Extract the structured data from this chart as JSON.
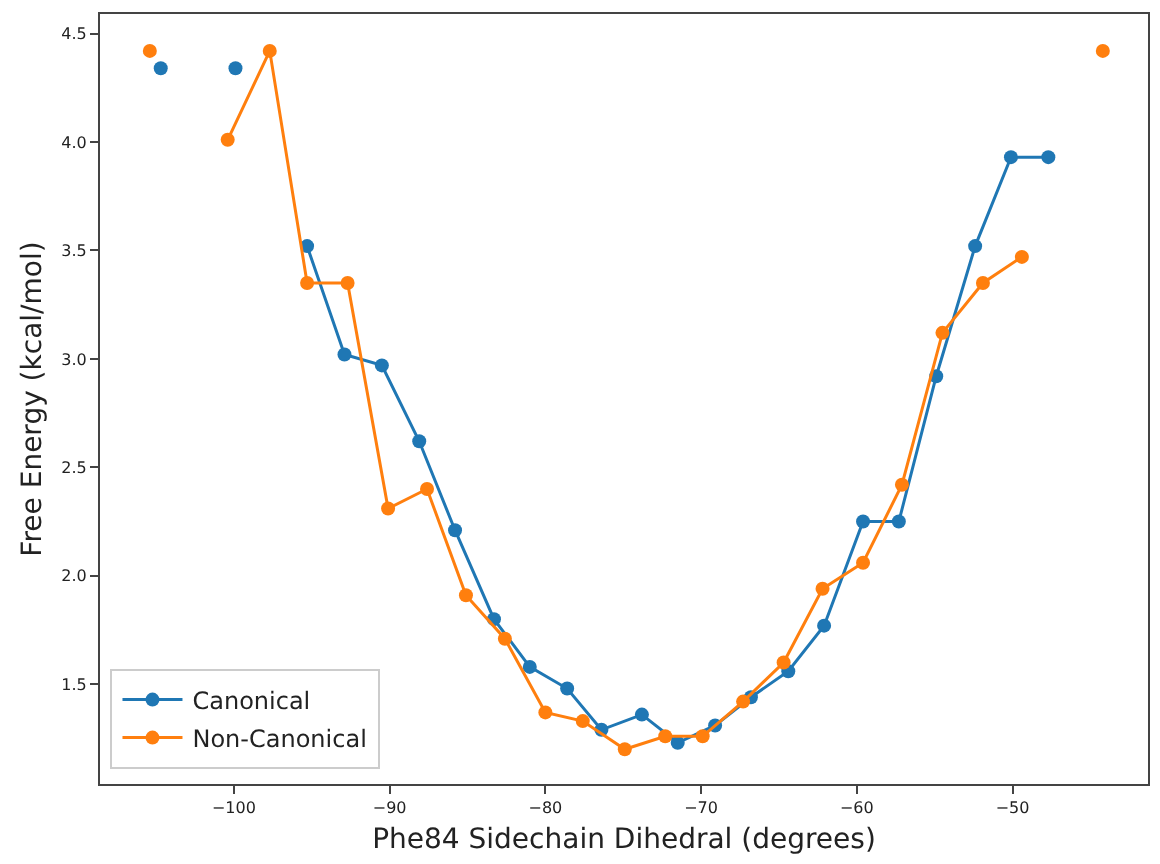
{
  "chart_data": {
    "type": "line",
    "xlabel": "Phe84 Sidechain Dihedral (degrees)",
    "ylabel": "Free Energy (kcal/mol)",
    "xlim": [
      -108.6,
      -41.3
    ],
    "ylim": [
      1.04,
      4.59
    ],
    "xticks": [
      -100,
      -90,
      -80,
      -70,
      -60,
      -50
    ],
    "yticks": [
      1.5,
      {
        "value": 2,
        "label": "2.0"
      },
      2.5,
      {
        "value": 3,
        "label": "3.0"
      },
      3.5,
      {
        "value": 4,
        "label": "4.0"
      },
      4.5
    ],
    "grid": false,
    "legend": "bottom left",
    "marker": "circle",
    "line_style": "solid",
    "series": [
      {
        "name": "Canonical",
        "color": "#1f77b4",
        "x": [
          -104.7,
          -102.3,
          -99.9,
          -97.6,
          -95.3,
          -92.9,
          -90.5,
          -88.1,
          -85.8,
          -83.3,
          -81.0,
          -78.6,
          -76.4,
          -73.8,
          -71.5,
          -69.1,
          -66.8,
          -64.4,
          -62.1,
          -59.6,
          -57.3,
          -54.9,
          -52.4,
          -50.1,
          -47.7
        ],
        "values": [
          4.34,
          null,
          4.34,
          null,
          3.52,
          3.02,
          2.97,
          2.62,
          2.21,
          1.8,
          1.58,
          1.48,
          1.29,
          1.36,
          1.23,
          1.31,
          1.44,
          1.56,
          1.77,
          2.25,
          2.25,
          2.92,
          3.52,
          3.93,
          3.93
        ]
      },
      {
        "name": "Non-Canonical",
        "color": "#ff7f0e",
        "x": [
          -105.4,
          -102.9,
          -100.4,
          -97.7,
          -95.3,
          -92.7,
          -90.1,
          -87.6,
          -85.1,
          -82.6,
          -80.0,
          -77.6,
          -74.9,
          -72.3,
          -69.9,
          -67.3,
          -64.7,
          -62.2,
          -59.6,
          -57.1,
          -54.5,
          -51.9,
          -49.4,
          -46.8,
          -44.2
        ],
        "values": [
          4.42,
          null,
          4.01,
          4.42,
          3.35,
          3.35,
          2.31,
          2.4,
          1.91,
          1.71,
          1.37,
          1.33,
          1.2,
          1.26,
          1.26,
          1.42,
          1.6,
          1.94,
          2.06,
          2.42,
          3.12,
          3.35,
          3.47,
          null,
          4.42
        ]
      }
    ]
  }
}
